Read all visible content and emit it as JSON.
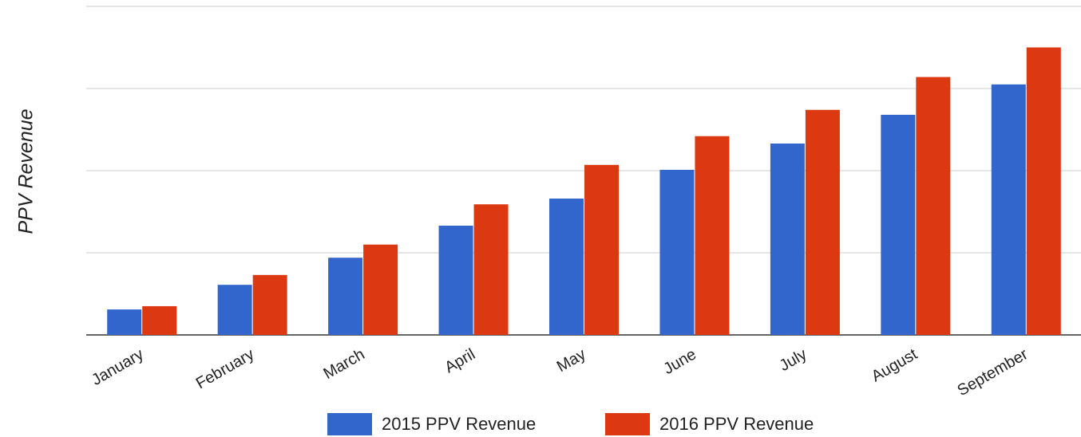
{
  "chart_data": {
    "type": "bar",
    "y_axis_label": "PPV Revenue",
    "categories": [
      "January",
      "February",
      "March",
      "April",
      "May",
      "June",
      "July",
      "August",
      "September"
    ],
    "series": [
      {
        "name": "2015 PPV Revenue",
        "color": "#3366cc",
        "values": [
          0.31,
          0.61,
          0.94,
          1.33,
          1.66,
          2.01,
          2.33,
          2.68,
          3.05
        ]
      },
      {
        "name": "2016 PPV Revenue",
        "color": "#dc3912",
        "values": [
          0.35,
          0.73,
          1.1,
          1.59,
          2.07,
          2.42,
          2.74,
          3.14,
          3.5
        ]
      }
    ],
    "ylim": [
      0,
      4
    ],
    "yticks": [
      0,
      1,
      2,
      3,
      4
    ],
    "tick_labels_shown": false,
    "grid": true,
    "legend": "bottom"
  }
}
